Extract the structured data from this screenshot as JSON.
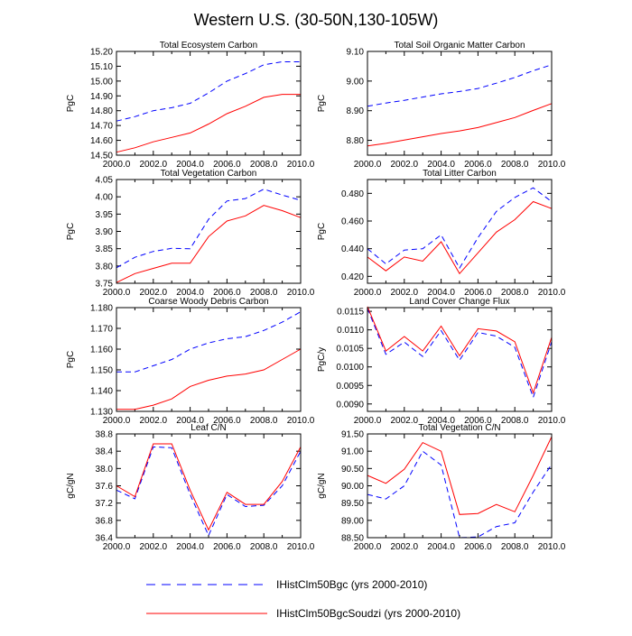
{
  "title": "Western U.S. (30-50N,130-105W)",
  "x_tick_labels": [
    "2000.0",
    "2002.0",
    "2004.0",
    "2006.0",
    "2008.0",
    "2010.0"
  ],
  "legend": [
    {
      "label": "IHistClm50Bgc (yrs 2000-2010)",
      "color": "#0000ff",
      "dash": "dashed"
    },
    {
      "label": "IHistClm50BgcSoudzi (yrs 2000-2010)",
      "color": "#ff0000",
      "dash": "solid"
    }
  ],
  "chart_data": [
    {
      "type": "line",
      "title": "Total Ecosystem Carbon",
      "ylabel": "PgC",
      "x": [
        2000,
        2001,
        2002,
        2003,
        2004,
        2005,
        2006,
        2007,
        2008,
        2009,
        2010
      ],
      "xlim": [
        2000,
        2010
      ],
      "ylim": [
        14.5,
        15.2
      ],
      "yticks": [
        14.5,
        14.6,
        14.7,
        14.8,
        14.9,
        15.0,
        15.1,
        15.2
      ],
      "ytick_labels": [
        "14.50",
        "14.60",
        "14.70",
        "14.80",
        "14.90",
        "15.00",
        "15.10",
        "15.20"
      ],
      "series": [
        {
          "name": "IHistClm50Bgc",
          "values": [
            14.73,
            14.76,
            14.8,
            14.82,
            14.85,
            14.92,
            15.0,
            15.05,
            15.11,
            15.13,
            15.13
          ]
        },
        {
          "name": "IHistClm50BgcSoudzi",
          "values": [
            14.52,
            14.55,
            14.59,
            14.62,
            14.65,
            14.71,
            14.78,
            14.83,
            14.89,
            14.91,
            14.91
          ]
        }
      ]
    },
    {
      "type": "line",
      "title": "Total Soil Organic Matter Carbon",
      "ylabel": "PgC",
      "x": [
        2000,
        2001,
        2002,
        2003,
        2004,
        2005,
        2006,
        2007,
        2008,
        2009,
        2010
      ],
      "xlim": [
        2000,
        2010
      ],
      "ylim": [
        8.75,
        9.1
      ],
      "yticks": [
        8.8,
        8.9,
        9.0,
        9.1
      ],
      "ytick_labels": [
        "8.80",
        "8.90",
        "9.00",
        "9.10"
      ],
      "series": [
        {
          "name": "IHistClm50Bgc",
          "values": [
            8.915,
            8.926,
            8.935,
            8.946,
            8.957,
            8.965,
            8.975,
            8.993,
            9.012,
            9.035,
            9.055
          ]
        },
        {
          "name": "IHistClm50BgcSoudzi",
          "values": [
            8.781,
            8.79,
            8.801,
            8.812,
            8.823,
            8.832,
            8.843,
            8.86,
            8.877,
            8.901,
            8.924
          ]
        }
      ]
    },
    {
      "type": "line",
      "title": "Total Vegetation Carbon",
      "ylabel": "PgC",
      "x": [
        2000,
        2001,
        2002,
        2003,
        2004,
        2005,
        2006,
        2007,
        2008,
        2009,
        2010
      ],
      "xlim": [
        2000,
        2010
      ],
      "ylim": [
        3.75,
        4.05
      ],
      "yticks": [
        3.75,
        3.8,
        3.85,
        3.9,
        3.95,
        4.0,
        4.05
      ],
      "ytick_labels": [
        "3.75",
        "3.80",
        "3.85",
        "3.90",
        "3.95",
        "4.00",
        "4.05"
      ],
      "series": [
        {
          "name": "IHistClm50Bgc",
          "values": [
            3.795,
            3.825,
            3.842,
            3.851,
            3.85,
            3.935,
            3.988,
            3.995,
            4.022,
            4.005,
            3.99
          ]
        },
        {
          "name": "IHistClm50BgcSoudzi",
          "values": [
            3.752,
            3.778,
            3.793,
            3.808,
            3.808,
            3.885,
            3.93,
            3.945,
            3.975,
            3.96,
            3.94
          ]
        }
      ]
    },
    {
      "type": "line",
      "title": "Total Litter Carbon",
      "ylabel": "PgC",
      "x": [
        2000,
        2001,
        2002,
        2003,
        2004,
        2005,
        2006,
        2007,
        2008,
        2009,
        2010
      ],
      "xlim": [
        2000,
        2010
      ],
      "ylim": [
        0.415,
        0.49
      ],
      "yticks": [
        0.42,
        0.44,
        0.46,
        0.48
      ],
      "ytick_labels": [
        "0.420",
        "0.440",
        "0.460",
        "0.480"
      ],
      "series": [
        {
          "name": "IHistClm50Bgc",
          "values": [
            0.44,
            0.429,
            0.439,
            0.44,
            0.45,
            0.426,
            0.448,
            0.467,
            0.477,
            0.484,
            0.474
          ]
        },
        {
          "name": "IHistClm50BgcSoudzi",
          "values": [
            0.434,
            0.424,
            0.434,
            0.431,
            0.445,
            0.422,
            0.437,
            0.452,
            0.461,
            0.474,
            0.469
          ]
        }
      ]
    },
    {
      "type": "line",
      "title": "Coarse Woody Debris Carbon",
      "ylabel": "PgC",
      "x": [
        2000,
        2001,
        2002,
        2003,
        2004,
        2005,
        2006,
        2007,
        2008,
        2009,
        2010
      ],
      "xlim": [
        2000,
        2010
      ],
      "ylim": [
        1.13,
        1.18
      ],
      "yticks": [
        1.13,
        1.14,
        1.15,
        1.16,
        1.17,
        1.18
      ],
      "ytick_labels": [
        "1.130",
        "1.140",
        "1.150",
        "1.160",
        "1.170",
        "1.180"
      ],
      "series": [
        {
          "name": "IHistClm50Bgc",
          "values": [
            1.149,
            1.149,
            1.152,
            1.155,
            1.16,
            1.163,
            1.165,
            1.166,
            1.169,
            1.173,
            1.178
          ]
        },
        {
          "name": "IHistClm50BgcSoudzi",
          "values": [
            1.131,
            1.131,
            1.133,
            1.136,
            1.142,
            1.145,
            1.147,
            1.148,
            1.15,
            1.155,
            1.16
          ]
        }
      ]
    },
    {
      "type": "line",
      "title": "Land Cover Change Flux",
      "ylabel": "PgC/y",
      "x": [
        2000,
        2001,
        2002,
        2003,
        2004,
        2005,
        2006,
        2007,
        2008,
        2009,
        2010
      ],
      "xlim": [
        2000,
        2010
      ],
      "ylim": [
        0.0088,
        0.0116
      ],
      "yticks": [
        0.009,
        0.0095,
        0.01,
        0.0105,
        0.011,
        0.0115
      ],
      "ytick_labels": [
        "0.0090",
        "0.0095",
        "0.0100",
        "0.0105",
        "0.0110",
        "0.0115"
      ],
      "series": [
        {
          "name": "IHistClm50Bgc",
          "values": [
            0.01158,
            0.01034,
            0.01067,
            0.01028,
            0.01098,
            0.01018,
            0.01093,
            0.01083,
            0.01053,
            0.00918,
            0.01068
          ]
        },
        {
          "name": "IHistClm50BgcSoudzi",
          "values": [
            0.01163,
            0.01043,
            0.01082,
            0.01043,
            0.0111,
            0.0103,
            0.01103,
            0.01097,
            0.01068,
            0.0093,
            0.0108
          ]
        }
      ]
    },
    {
      "type": "line",
      "title": "Leaf C/N",
      "ylabel": "gC/gN",
      "x": [
        2000,
        2001,
        2002,
        2003,
        2004,
        2005,
        2006,
        2007,
        2008,
        2009,
        2010
      ],
      "xlim": [
        2000,
        2010
      ],
      "ylim": [
        36.4,
        38.8
      ],
      "yticks": [
        36.4,
        36.8,
        37.2,
        37.6,
        38.0,
        38.4,
        38.8
      ],
      "ytick_labels": [
        "36.4",
        "36.8",
        "37.2",
        "37.6",
        "38.0",
        "38.4",
        "38.8"
      ],
      "series": [
        {
          "name": "IHistClm50Bgc",
          "values": [
            37.5,
            37.3,
            38.5,
            38.48,
            37.4,
            36.45,
            37.4,
            37.12,
            37.15,
            37.6,
            38.4
          ]
        },
        {
          "name": "IHistClm50BgcSoudzi",
          "values": [
            37.6,
            37.35,
            38.57,
            38.57,
            37.5,
            36.58,
            37.45,
            37.17,
            37.17,
            37.7,
            38.5
          ]
        }
      ]
    },
    {
      "type": "line",
      "title": "Total Vegetation C/N",
      "ylabel": "gC/gN",
      "x": [
        2000,
        2001,
        2002,
        2003,
        2004,
        2005,
        2006,
        2007,
        2008,
        2009,
        2010
      ],
      "xlim": [
        2000,
        2010
      ],
      "ylim": [
        88.5,
        91.5
      ],
      "yticks": [
        88.5,
        89.0,
        89.5,
        90.0,
        90.5,
        91.0,
        91.5
      ],
      "ytick_labels": [
        "88.50",
        "89.00",
        "89.50",
        "90.00",
        "90.50",
        "91.00",
        "91.50"
      ],
      "series": [
        {
          "name": "IHistClm50Bgc",
          "values": [
            89.75,
            89.62,
            90.0,
            91.0,
            90.6,
            88.5,
            88.52,
            88.82,
            88.93,
            89.82,
            90.62
          ]
        },
        {
          "name": "IHistClm50BgcSoudzi",
          "values": [
            90.3,
            90.07,
            90.48,
            91.25,
            91.0,
            89.17,
            89.2,
            89.46,
            89.25,
            90.3,
            91.42
          ]
        }
      ]
    }
  ]
}
